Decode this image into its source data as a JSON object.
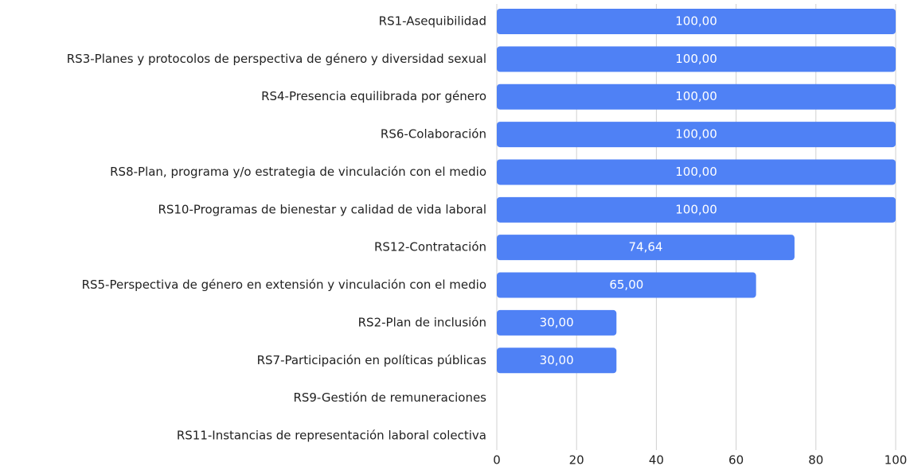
{
  "chart_data": {
    "type": "bar",
    "orientation": "horizontal",
    "categories": [
      "RS1-Asequibilidad",
      "RS3-Planes y protocolos de perspectiva de género y diversidad sexual",
      "RS4-Presencia equilibrada por género",
      "RS6-Colaboración",
      "RS8-Plan, programa y/o estrategia de vinculación con el medio",
      "RS10-Programas de bienestar y calidad de vida laboral",
      "RS12-Contratación",
      "RS5-Perspectiva de género en extensión y vinculación con el medio",
      "RS2-Plan de inclusión",
      "RS7-Participación en políticas públicas",
      "RS9-Gestión de remuneraciones",
      "RS11-Instancias de representación laboral colectiva"
    ],
    "values": [
      100,
      100,
      100,
      100,
      100,
      100,
      74.64,
      65,
      30,
      30,
      null,
      null
    ],
    "value_labels": [
      "100,00",
      "100,00",
      "100,00",
      "100,00",
      "100,00",
      "100,00",
      "74,64",
      "65,00",
      "30,00",
      "30,00",
      null,
      null
    ],
    "color": "#4f81f5",
    "xlim": [
      0,
      100
    ],
    "xticks": [
      0,
      20,
      40,
      60,
      80,
      100
    ],
    "grid": true
  }
}
